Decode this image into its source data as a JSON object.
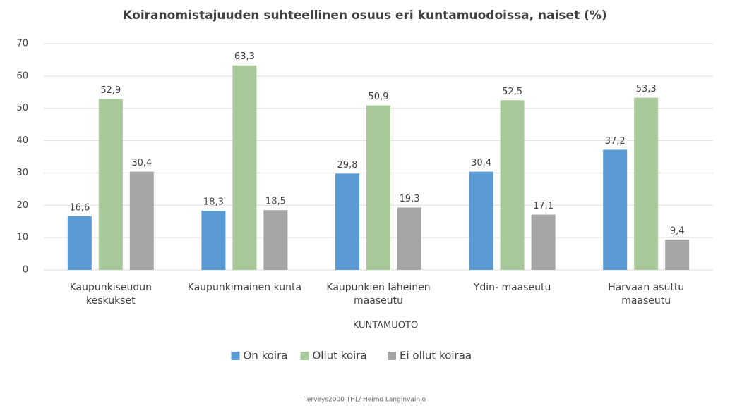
{
  "chart_data": {
    "type": "bar",
    "title": "Koiranomistajuuden suhteellinen osuus eri kuntamuodoissa, naiset (%)",
    "categories": [
      "Kaupunkiseudun keskukset",
      "Kaupunkimainen kunta",
      "Kaupunkien läheinen maaseutu",
      "Ydin- maaseutu",
      "Harvaan asuttu maaseutu"
    ],
    "series": [
      {
        "name": "On koira",
        "color": "#5b9bd5",
        "values": [
          16.6,
          18.3,
          29.8,
          30.4,
          37.2
        ],
        "value_labels": [
          "16,6",
          "18,3",
          "29,8",
          "30,4",
          "37,2"
        ]
      },
      {
        "name": "Ollut koira",
        "color": "#a9c99b",
        "values": [
          52.9,
          63.3,
          50.9,
          52.5,
          53.3
        ],
        "value_labels": [
          "52,9",
          "63,3",
          "50,9",
          "52,5",
          "53,3"
        ]
      },
      {
        "name": "Ei ollut koiraa",
        "color": "#a5a5a5",
        "values": [
          30.4,
          18.5,
          19.3,
          17.1,
          9.4
        ],
        "value_labels": [
          "30,4",
          "18,5",
          "19,3",
          "17,1",
          "9,4"
        ]
      }
    ],
    "xlabel": "KUNTAMUOTO",
    "ylim": [
      0,
      70
    ],
    "yticks": [
      0,
      10,
      20,
      30,
      40,
      50,
      60,
      70
    ],
    "grid": true,
    "legend": "bottom",
    "source": "Terveys2000 THL/ Heimo Langinvainio"
  }
}
